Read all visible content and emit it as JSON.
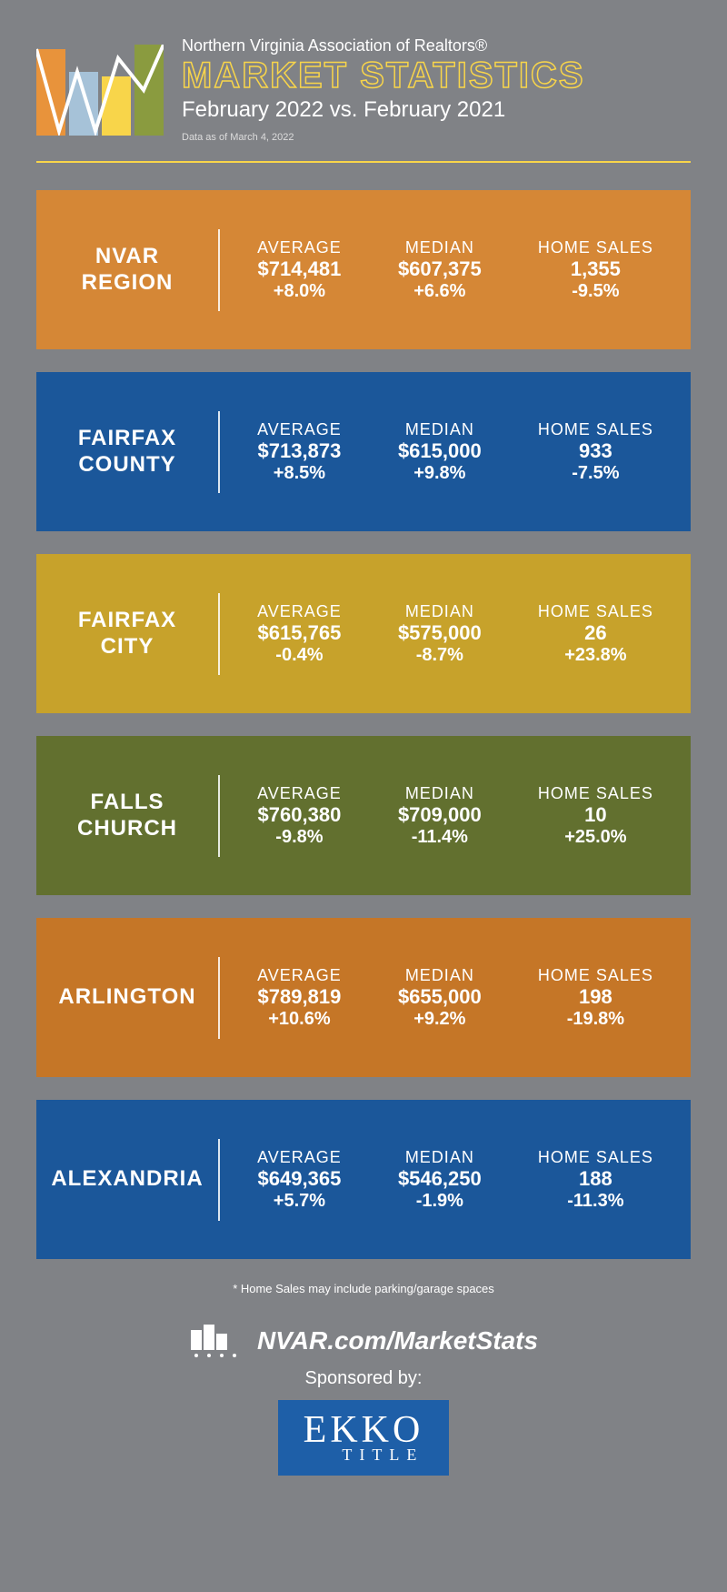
{
  "header": {
    "org_name": "Northern Virginia Association of Realtors®",
    "title": "MARKET STATISTICS",
    "subtitle": "February 2022 vs. February 2021",
    "data_as_of": "Data as of March 4, 2022"
  },
  "logo": {
    "bar_colors": [
      "#e8933b",
      "#a6c2d8",
      "#f8d54a",
      "#8a9b3f"
    ]
  },
  "divider_color": "#f8d54a",
  "background_color": "#808286",
  "metric_labels": {
    "average": "AVERAGE",
    "median": "MEDIAN",
    "sales": "HOME SALES"
  },
  "panels": [
    {
      "name": "NVAR REGION",
      "bg_color": "#e8933b",
      "average": {
        "value": "$714,481",
        "change": "+8.0%"
      },
      "median": {
        "value": "$607,375",
        "change": "+6.6%"
      },
      "sales": {
        "value": "1,355",
        "change": "-9.5%"
      }
    },
    {
      "name": "FAIRFAX COUNTY",
      "bg_color": "#1e5fa8",
      "average": {
        "value": "$713,873",
        "change": "+8.5%"
      },
      "median": {
        "value": "$615,000",
        "change": "+9.8%"
      },
      "sales": {
        "value": "933",
        "change": "-7.5%"
      }
    },
    {
      "name": "FAIRFAX CITY",
      "bg_color": "#d8b02f",
      "average": {
        "value": "$615,765",
        "change": "-0.4%"
      },
      "median": {
        "value": "$575,000",
        "change": "-8.7%"
      },
      "sales": {
        "value": "26",
        "change": "+23.8%"
      }
    },
    {
      "name": "FALLS CHURCH",
      "bg_color": "#6b7a33",
      "average": {
        "value": "$760,380",
        "change": "-9.8%"
      },
      "median": {
        "value": "$709,000",
        "change": "-11.4%"
      },
      "sales": {
        "value": "10",
        "change": "+25.0%"
      }
    },
    {
      "name": "ARLINGTON",
      "bg_color": "#d6802b",
      "average": {
        "value": "$789,819",
        "change": "+10.6%"
      },
      "median": {
        "value": "$655,000",
        "change": "+9.2%"
      },
      "sales": {
        "value": "198",
        "change": "-19.8%"
      }
    },
    {
      "name": "ALEXANDRIA",
      "bg_color": "#1e5fa8",
      "average": {
        "value": "$649,365",
        "change": "+5.7%"
      },
      "median": {
        "value": "$546,250",
        "change": "-1.9%"
      },
      "sales": {
        "value": "188",
        "change": "-11.3%"
      }
    }
  ],
  "footnote": "* Home Sales may include parking/garage spaces",
  "footer": {
    "url": "NVAR.com/MarketStats",
    "sponsored_label": "Sponsored by:",
    "sponsor_name": "EKKO",
    "sponsor_sub": "TITLE",
    "sponsor_bg": "#1e5fa8"
  }
}
